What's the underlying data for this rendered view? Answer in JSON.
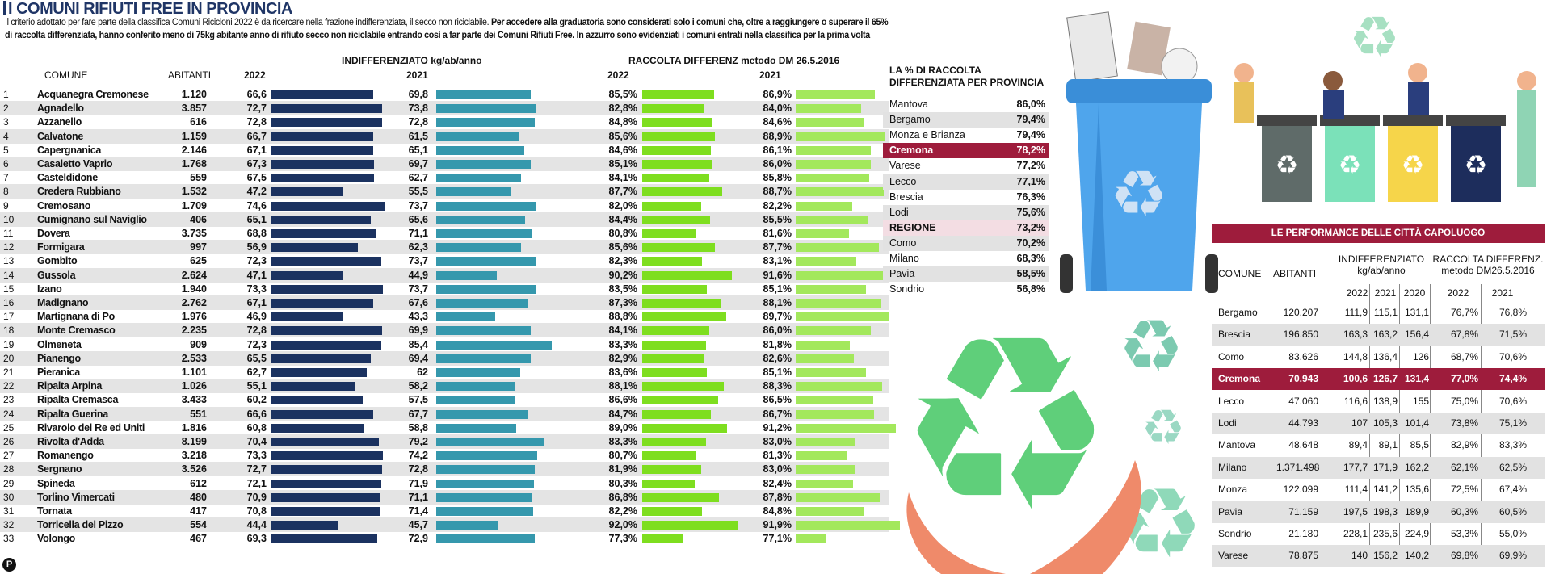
{
  "title": "I COMUNI RIFIUTI FREE IN PROVINCIA",
  "intro": {
    "line1_plain": "Il criterio adottato per fare parte della classifica Comuni Ricicloni 2022 è da ricercare nella frazione indifferenziata, il secco non riciclabile.",
    "line1_bold": " Per accedere alla graduatoria sono considerati solo i comuni che, oltre a raggiungere o superare il 65%",
    "line2_bold": "di raccolta differenziata, hanno conferito meno di 75kg abitante anno di rifiuto secco non riciclabile entrando così a far parte dei Comuni Rifiuti Free. In azzurro sono evidenziati i comuni entrati nella classifica per la prima volta"
  },
  "headers": {
    "indiff": "INDIFFERENZIATO kg/ab/anno",
    "raccolta": "RACCOLTA DIFFERENZ metodo DM 26.5.2016",
    "comune": "COMUNE",
    "abitanti": "ABITANTI",
    "y2022a": "2022",
    "y2021a": "2021",
    "y2022b": "2022",
    "y2021b": "2021"
  },
  "chart_data": {
    "type": "table",
    "title": "I COMUNI RIFIUTI FREE IN PROVINCIA",
    "series": [
      {
        "name": "INDIFFERENZIATO 2022",
        "unit": "kg/ab/anno"
      },
      {
        "name": "INDIFFERENZIATO 2021",
        "unit": "kg/ab/anno"
      },
      {
        "name": "RACCOLTA DIFFERENZ 2022",
        "unit": "%"
      },
      {
        "name": "RACCOLTA DIFFERENZ 2021",
        "unit": "%"
      }
    ],
    "rows": [
      [
        "1",
        "Acquanegra Cremonese",
        "1.120",
        "66,6",
        "69,8",
        "85,5%",
        "86,9%"
      ],
      [
        "2",
        "Agnadello",
        "3.857",
        "72,7",
        "73,8",
        "82,8%",
        "84,0%"
      ],
      [
        "3",
        "Azzanello",
        "616",
        "72,8",
        "72,8",
        "84,8%",
        "84,6%"
      ],
      [
        "4",
        "Calvatone",
        "1.159",
        "66,7",
        "61,5",
        "85,6%",
        "88,9%"
      ],
      [
        "5",
        "Capergnanica",
        "2.146",
        "67,1",
        "65,1",
        "84,6%",
        "86,1%"
      ],
      [
        "6",
        "Casaletto Vaprio",
        "1.768",
        "67,3",
        "69,7",
        "85,1%",
        "86,0%"
      ],
      [
        "7",
        "Casteldidone",
        "559",
        "67,5",
        "62,7",
        "84,1%",
        "85,8%"
      ],
      [
        "8",
        "Credera Rubbiano",
        "1.532",
        "47,2",
        "55,5",
        "87,7%",
        "88,7%"
      ],
      [
        "9",
        "Cremosano",
        "1.709",
        "74,6",
        "73,7",
        "82,0%",
        "82,2%"
      ],
      [
        "10",
        "Cumignano sul Naviglio",
        "406",
        "65,1",
        "65,6",
        "84,4%",
        "85,5%"
      ],
      [
        "11",
        "Dovera",
        "3.735",
        "68,8",
        "71,1",
        "80,8%",
        "81,6%"
      ],
      [
        "12",
        "Formigara",
        "997",
        "56,9",
        "62,3",
        "85,6%",
        "87,7%"
      ],
      [
        "13",
        "Gombito",
        "625",
        "72,3",
        "73,7",
        "82,3%",
        "83,1%"
      ],
      [
        "14",
        "Gussola",
        "2.624",
        "47,1",
        "44,9",
        "90,2%",
        "91,6%"
      ],
      [
        "15",
        "Izano",
        "1.940",
        "73,3",
        "73,7",
        "83,5%",
        "85,1%"
      ],
      [
        "16",
        "Madignano",
        "2.762",
        "67,1",
        "67,6",
        "87,3%",
        "88,1%"
      ],
      [
        "17",
        "Martignana di Po",
        "1.976",
        "46,9",
        "43,3",
        "88,8%",
        "89,7%"
      ],
      [
        "18",
        "Monte Cremasco",
        "2.235",
        "72,8",
        "69,9",
        "84,1%",
        "86,0%"
      ],
      [
        "19",
        "Olmeneta",
        "909",
        "72,3",
        "85,4",
        "83,3%",
        "81,8%"
      ],
      [
        "20",
        "Pianengo",
        "2.533",
        "65,5",
        "69,4",
        "82,9%",
        "82,6%"
      ],
      [
        "21",
        "Pieranica",
        "1.101",
        "62,7",
        "62",
        "83,6%",
        "85,1%"
      ],
      [
        "22",
        "Ripalta Arpina",
        "1.026",
        "55,1",
        "58,2",
        "88,1%",
        "88,3%"
      ],
      [
        "23",
        "Ripalta Cremasca",
        "3.433",
        "60,2",
        "57,5",
        "86,6%",
        "86,5%"
      ],
      [
        "24",
        "Ripalta Guerina",
        "551",
        "66,6",
        "67,7",
        "84,7%",
        "86,7%"
      ],
      [
        "25",
        "Rivarolo del Re ed Uniti",
        "1.816",
        "60,8",
        "58,8",
        "89,0%",
        "91,2%"
      ],
      [
        "26",
        "Rivolta d'Adda",
        "8.199",
        "70,4",
        "79,2",
        "83,3%",
        "83,0%"
      ],
      [
        "27",
        "Romanengo",
        "3.218",
        "73,3",
        "74,2",
        "80,7%",
        "81,3%"
      ],
      [
        "28",
        "Sergnano",
        "3.526",
        "72,7",
        "72,8",
        "81,9%",
        "83,0%"
      ],
      [
        "29",
        "Spineda",
        "612",
        "72,1",
        "71,9",
        "80,3%",
        "82,4%"
      ],
      [
        "30",
        "Torlino Vimercati",
        "480",
        "70,9",
        "71,1",
        "86,8%",
        "87,8%"
      ],
      [
        "31",
        "Tornata",
        "417",
        "70,8",
        "71,4",
        "82,2%",
        "84,8%"
      ],
      [
        "32",
        "Torricella del Pizzo",
        "554",
        "44,4",
        "45,7",
        "92,0%",
        "91,9%"
      ],
      [
        "33",
        "Volongo",
        "467",
        "69,3",
        "72,9",
        "77,3%",
        "77,1%"
      ]
    ]
  },
  "province": {
    "title1": "LA % DI RACCOLTA",
    "title2": "DIFFERENZIATA PER PROVINCIA",
    "rows": [
      [
        "Mantova",
        "86,0%"
      ],
      [
        "Bergamo",
        "79,4%"
      ],
      [
        "Monza e Brianza",
        "79,4%"
      ],
      [
        "Cremona",
        "78,2%"
      ],
      [
        "Varese",
        "77,2%"
      ],
      [
        "Lecco",
        "77,1%"
      ],
      [
        "Brescia",
        "76,3%"
      ],
      [
        "Lodi",
        "75,6%"
      ],
      [
        "REGIONE",
        "73,2%"
      ],
      [
        "Como",
        "70,2%"
      ],
      [
        "Milano",
        "68,3%"
      ],
      [
        "Pavia",
        "58,5%"
      ],
      [
        "Sondrio",
        "56,8%"
      ]
    ]
  },
  "capoluoghi": {
    "title": "LE PERFORMANCE DELLE CITTÀ CAPOLUOGO",
    "h_comune": "COMUNE",
    "h_abitanti": "ABITANTI",
    "h_indiff1": "INDIFFERENZIATO",
    "h_indiff2": "kg/ab/anno",
    "h_racc1": "RACCOLTA DIFFERENZ.",
    "h_racc2": "metodo DM26.5.2016",
    "years": [
      "2022",
      "2021",
      "2020",
      "2022",
      "2021"
    ],
    "rows": [
      [
        "Bergamo",
        "120.207",
        "111,9",
        "115,1",
        "131,1",
        "76,7%",
        "76,8%"
      ],
      [
        "Brescia",
        "196.850",
        "163,3",
        "163,2",
        "156,4",
        "67,8%",
        "71,5%"
      ],
      [
        "Como",
        "83.626",
        "144,8",
        "136,4",
        "126",
        "68,7%",
        "70,6%"
      ],
      [
        "Cremona",
        "70.943",
        "100,6",
        "126,7",
        "131,4",
        "77,0%",
        "74,4%"
      ],
      [
        "Lecco",
        "47.060",
        "116,6",
        "138,9",
        "155",
        "75,0%",
        "70,6%"
      ],
      [
        "Lodi",
        "44.793",
        "107",
        "105,3",
        "101,4",
        "73,8%",
        "75,1%"
      ],
      [
        "Mantova",
        "48.648",
        "89,4",
        "89,1",
        "85,5",
        "82,9%",
        "83,3%"
      ],
      [
        "Milano",
        "1.371.498",
        "177,7",
        "171,9",
        "162,2",
        "62,1%",
        "62,5%"
      ],
      [
        "Monza",
        "122.099",
        "111,4",
        "141,2",
        "135,6",
        "72,5%",
        "67,4%"
      ],
      [
        "Pavia",
        "71.159",
        "197,5",
        "198,3",
        "189,9",
        "60,3%",
        "60,5%"
      ],
      [
        "Sondrio",
        "21.180",
        "228,1",
        "235,6",
        "224,9",
        "53,3%",
        "55,0%"
      ],
      [
        "Varese",
        "78.875",
        "140",
        "156,2",
        "140,2",
        "69,8%",
        "69,9%"
      ]
    ]
  },
  "logo_letter": "P",
  "colors": {
    "navy": "#1b3260",
    "teal": "#3598ad",
    "green": "#7ede1f",
    "lightgreen": "#a3e85c",
    "crimson": "#9e1c3c"
  }
}
